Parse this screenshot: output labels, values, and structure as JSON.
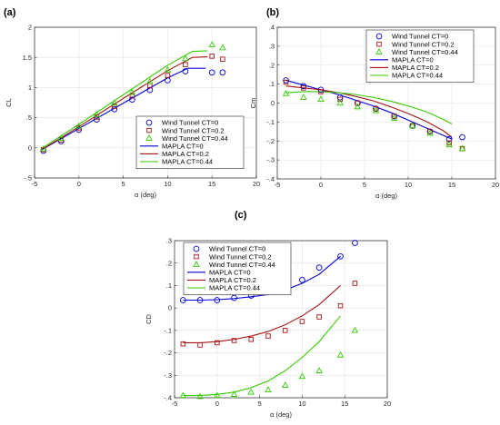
{
  "colors": {
    "ct0": "#0000dd",
    "ct02": "#a51515",
    "ct044": "#33cc00",
    "axis": "#262626",
    "grid": "#e2e2e2"
  },
  "chart_data": [
    {
      "panel_label": "(a)",
      "type": "scatter",
      "title": "",
      "xlabel": "α (deg)",
      "ylabel": "CL",
      "xlim": [
        -5,
        20
      ],
      "ylim": [
        -0.5,
        2
      ],
      "xticks": [
        -5,
        0,
        5,
        10,
        15,
        20
      ],
      "yticks": [
        -0.5,
        0,
        0.5,
        1,
        1.5,
        2
      ],
      "legend_position": "bottom-right",
      "grid": true,
      "series": [
        {
          "name": "Wind Tunnel CT=0",
          "kind": "marker",
          "marker": "circle",
          "color_key": "ct0",
          "x": [
            -4,
            -2,
            0,
            2,
            4,
            6,
            8,
            10,
            12,
            15,
            16.2
          ],
          "y": [
            -0.05,
            0.11,
            0.3,
            0.47,
            0.64,
            0.8,
            0.96,
            1.12,
            1.27,
            1.25,
            1.25
          ]
        },
        {
          "name": "Wind Tunnel CT=0.2",
          "kind": "marker",
          "marker": "square",
          "color_key": "ct02",
          "x": [
            -4,
            -2,
            0,
            2,
            4,
            6,
            8,
            10,
            12,
            15,
            16.2
          ],
          "y": [
            -0.03,
            0.13,
            0.33,
            0.51,
            0.69,
            0.86,
            1.03,
            1.2,
            1.38,
            1.52,
            1.47
          ]
        },
        {
          "name": "Wind Tunnel CT=0.44",
          "kind": "marker",
          "marker": "triangle",
          "color_key": "ct044",
          "x": [
            -4,
            -2,
            0,
            2,
            4,
            6,
            8,
            10,
            12,
            15,
            16.2
          ],
          "y": [
            -0.02,
            0.16,
            0.36,
            0.55,
            0.74,
            0.92,
            1.1,
            1.29,
            1.48,
            1.71,
            1.66
          ]
        },
        {
          "name": "MAPLA CT=0",
          "kind": "line",
          "color_key": "ct0",
          "x": [
            -4.3,
            0,
            5,
            10,
            12.3,
            14.3
          ],
          "y": [
            -0.04,
            0.32,
            0.74,
            1.16,
            1.32,
            1.32
          ]
        },
        {
          "name": "MAPLA CT=0.2",
          "kind": "line",
          "color_key": "ct02",
          "x": [
            -4.3,
            0,
            5,
            10,
            12.8,
            14.5
          ],
          "y": [
            -0.04,
            0.35,
            0.82,
            1.28,
            1.5,
            1.51
          ]
        },
        {
          "name": "MAPLA CT=0.44",
          "kind": "line",
          "color_key": "ct044",
          "x": [
            -4.3,
            0,
            5,
            10,
            12.8,
            14.5
          ],
          "y": [
            -0.02,
            0.39,
            0.88,
            1.37,
            1.6,
            1.61
          ]
        }
      ]
    },
    {
      "panel_label": "(b)",
      "type": "scatter",
      "title": "",
      "xlabel": "α (deg)",
      "ylabel": "Cm",
      "xlim": [
        -5,
        20
      ],
      "ylim": [
        -0.4,
        0.4
      ],
      "xticks": [
        -5,
        0,
        5,
        10,
        15,
        20
      ],
      "yticks": [
        -0.4,
        -0.3,
        -0.2,
        -0.1,
        0,
        0.1,
        0.2,
        0.3,
        0.4
      ],
      "legend_position": "top-right",
      "grid": true,
      "series": [
        {
          "name": "Wind Tunnel CT=0",
          "kind": "marker",
          "marker": "circle",
          "color_key": "ct0",
          "x": [
            -4,
            -2,
            0,
            2.2,
            4.2,
            6.3,
            8.4,
            10.5,
            12.5,
            14.7,
            16.2
          ],
          "y": [
            0.12,
            0.09,
            0.07,
            0.03,
            0.0,
            -0.03,
            -0.07,
            -0.12,
            -0.15,
            -0.19,
            -0.18
          ]
        },
        {
          "name": "Wind Tunnel CT=0.2",
          "kind": "marker",
          "marker": "square",
          "color_key": "ct02",
          "x": [
            -4,
            -2,
            0,
            2.2,
            4.2,
            6.3,
            8.4,
            10.5,
            12.5,
            14.7,
            16.2
          ],
          "y": [
            0.11,
            0.08,
            0.06,
            0.02,
            0.0,
            -0.03,
            -0.07,
            -0.12,
            -0.15,
            -0.21,
            -0.24
          ]
        },
        {
          "name": "Wind Tunnel CT=0.44",
          "kind": "marker",
          "marker": "triangle",
          "color_key": "ct044",
          "x": [
            -4,
            -2,
            0,
            2.2,
            4.2,
            6.3,
            8.4,
            10.5,
            12.5,
            14.7,
            16.2
          ],
          "y": [
            0.05,
            0.03,
            0.02,
            0.0,
            -0.02,
            -0.04,
            -0.08,
            -0.12,
            -0.16,
            -0.22,
            -0.24
          ]
        },
        {
          "name": "MAPLA CT=0",
          "kind": "line",
          "color_key": "ct0",
          "x": [
            -4,
            -2,
            0,
            2,
            4,
            6,
            8,
            10,
            12,
            14,
            15
          ],
          "y": [
            0.12,
            0.095,
            0.07,
            0.045,
            0.015,
            -0.015,
            -0.05,
            -0.09,
            -0.13,
            -0.17,
            -0.19
          ]
        },
        {
          "name": "MAPLA CT=0.2",
          "kind": "line",
          "color_key": "ct02",
          "x": [
            -4,
            -2,
            0,
            2,
            4,
            6,
            8,
            10,
            12,
            14,
            15
          ],
          "y": [
            0.09,
            0.08,
            0.07,
            0.055,
            0.035,
            0.012,
            -0.02,
            -0.055,
            -0.095,
            -0.145,
            -0.18
          ]
        },
        {
          "name": "MAPLA CT=0.44",
          "kind": "line",
          "color_key": "ct044",
          "x": [
            -4,
            -2,
            0,
            2,
            4,
            6,
            8,
            10,
            12,
            14,
            15
          ],
          "y": [
            0.055,
            0.06,
            0.06,
            0.055,
            0.045,
            0.03,
            0.01,
            -0.015,
            -0.045,
            -0.085,
            -0.11
          ]
        }
      ]
    },
    {
      "panel_label": "(c)",
      "type": "scatter",
      "title": "",
      "xlabel": "α (deg)",
      "ylabel": "CD",
      "xlim": [
        -5,
        20
      ],
      "ylim": [
        -0.4,
        0.3
      ],
      "xticks": [
        -5,
        0,
        5,
        10,
        15,
        20
      ],
      "yticks": [
        -0.4,
        -0.3,
        -0.2,
        -0.1,
        0,
        0.1,
        0.2,
        0.3
      ],
      "legend_position": "top-left",
      "grid": true,
      "series": [
        {
          "name": "Wind Tunnel CT=0",
          "kind": "marker",
          "marker": "circle",
          "color_key": "ct0",
          "x": [
            -4,
            -2,
            0,
            2,
            4,
            6,
            8,
            10,
            12,
            14.5,
            16.2
          ],
          "y": [
            0.035,
            0.035,
            0.035,
            0.045,
            0.055,
            0.07,
            0.09,
            0.125,
            0.18,
            0.23,
            0.29
          ]
        },
        {
          "name": "Wind Tunnel CT=0.2",
          "kind": "marker",
          "marker": "square",
          "color_key": "ct02",
          "x": [
            -4,
            -2,
            0,
            2,
            4,
            6,
            8,
            10,
            12,
            14.5,
            16.2
          ],
          "y": [
            -0.16,
            -0.165,
            -0.155,
            -0.145,
            -0.14,
            -0.125,
            -0.1,
            -0.06,
            -0.04,
            0.01,
            0.11
          ]
        },
        {
          "name": "Wind Tunnel CT=0.44",
          "kind": "marker",
          "marker": "triangle",
          "color_key": "ct044",
          "x": [
            -4,
            -2,
            0,
            2,
            4,
            6,
            8,
            10,
            12,
            14.5,
            16.2
          ],
          "y": [
            -0.39,
            -0.395,
            -0.39,
            -0.385,
            -0.375,
            -0.365,
            -0.345,
            -0.305,
            -0.28,
            -0.21,
            -0.1
          ]
        },
        {
          "name": "MAPLA CT=0",
          "kind": "line",
          "color_key": "ct0",
          "x": [
            -4,
            -2,
            0,
            2,
            4,
            6,
            8,
            10,
            12,
            14.5
          ],
          "y": [
            0.035,
            0.035,
            0.037,
            0.042,
            0.05,
            0.06,
            0.08,
            0.11,
            0.15,
            0.23
          ]
        },
        {
          "name": "MAPLA CT=0.2",
          "kind": "line",
          "color_key": "ct02",
          "x": [
            -4,
            -2,
            0,
            2,
            4,
            6,
            8,
            10,
            12,
            14.5
          ],
          "y": [
            -0.155,
            -0.155,
            -0.15,
            -0.14,
            -0.125,
            -0.105,
            -0.075,
            -0.035,
            0.015,
            0.1
          ]
        },
        {
          "name": "MAPLA CT=0.44",
          "kind": "line",
          "color_key": "ct044",
          "x": [
            -4,
            -2,
            0,
            2,
            4,
            6,
            8,
            10,
            12,
            14.5
          ],
          "y": [
            -0.39,
            -0.39,
            -0.385,
            -0.375,
            -0.355,
            -0.325,
            -0.28,
            -0.22,
            -0.15,
            -0.035
          ]
        }
      ]
    }
  ]
}
